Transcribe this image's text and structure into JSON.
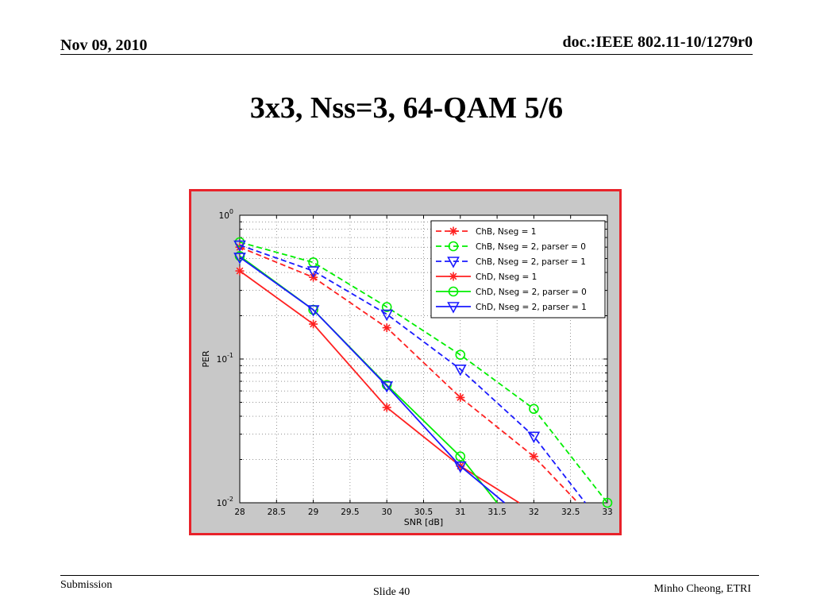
{
  "header": {
    "date": "Nov 09, 2010",
    "doc": "doc.:IEEE 802.11-10/1279r0"
  },
  "slide": {
    "title": "3x3, Nss=3, 64-QAM 5/6"
  },
  "footer": {
    "left": "Submission",
    "center": "Slide 40",
    "right": "Minho Cheong, ETRI"
  },
  "colors": {
    "frame": "#e8222a",
    "red": "#ff2020",
    "green": "#00ee00",
    "blue": "#1a1aff"
  },
  "chart_data": {
    "type": "line",
    "xlabel": "SNR [dB]",
    "ylabel": "PER",
    "xlim": [
      28,
      33
    ],
    "ylim": [
      0.01,
      1
    ],
    "yscale": "log",
    "xticks": [
      "28",
      "28.5",
      "29",
      "29.5",
      "30",
      "30.5",
      "31",
      "31.5",
      "32",
      "32.5",
      "33"
    ],
    "yticks": [
      {
        "base": "10",
        "exp": "-2"
      },
      {
        "base": "10",
        "exp": "-1"
      },
      {
        "base": "10",
        "exp": "0"
      }
    ],
    "grid": true,
    "legend_position": "top-right",
    "series": [
      {
        "name": "ChB, Nseg = 1",
        "color": "red",
        "dash": true,
        "marker": "asterisk",
        "x": [
          28,
          29,
          30,
          31,
          32,
          32.6
        ],
        "y": [
          0.6,
          0.37,
          0.165,
          0.054,
          0.021,
          0.01
        ]
      },
      {
        "name": "ChB, Nseg = 2, parser = 0",
        "color": "green",
        "dash": true,
        "marker": "circle",
        "x": [
          28,
          29,
          30,
          31,
          32,
          33
        ],
        "y": [
          0.65,
          0.47,
          0.23,
          0.107,
          0.045,
          0.01
        ]
      },
      {
        "name": "ChB, Nseg = 2, parser = 1",
        "color": "blue",
        "dash": true,
        "marker": "triangle",
        "x": [
          28,
          29,
          30,
          31,
          32,
          32.7
        ],
        "y": [
          0.62,
          0.41,
          0.205,
          0.085,
          0.029,
          0.01
        ]
      },
      {
        "name": "ChD, Nseg = 1",
        "color": "red",
        "dash": false,
        "marker": "asterisk",
        "x": [
          28,
          29,
          30,
          31,
          31.8
        ],
        "y": [
          0.41,
          0.175,
          0.046,
          0.018,
          0.01
        ]
      },
      {
        "name": "ChD, Nseg = 2, parser = 0",
        "color": "green",
        "dash": false,
        "marker": "circle",
        "x": [
          28,
          29,
          30,
          31,
          31.5
        ],
        "y": [
          0.52,
          0.22,
          0.066,
          0.021,
          0.01
        ]
      },
      {
        "name": "ChD, Nseg = 2, parser = 1",
        "color": "blue",
        "dash": false,
        "marker": "triangle",
        "x": [
          28,
          29,
          30,
          31,
          31.6
        ],
        "y": [
          0.51,
          0.22,
          0.065,
          0.018,
          0.01
        ]
      }
    ]
  }
}
